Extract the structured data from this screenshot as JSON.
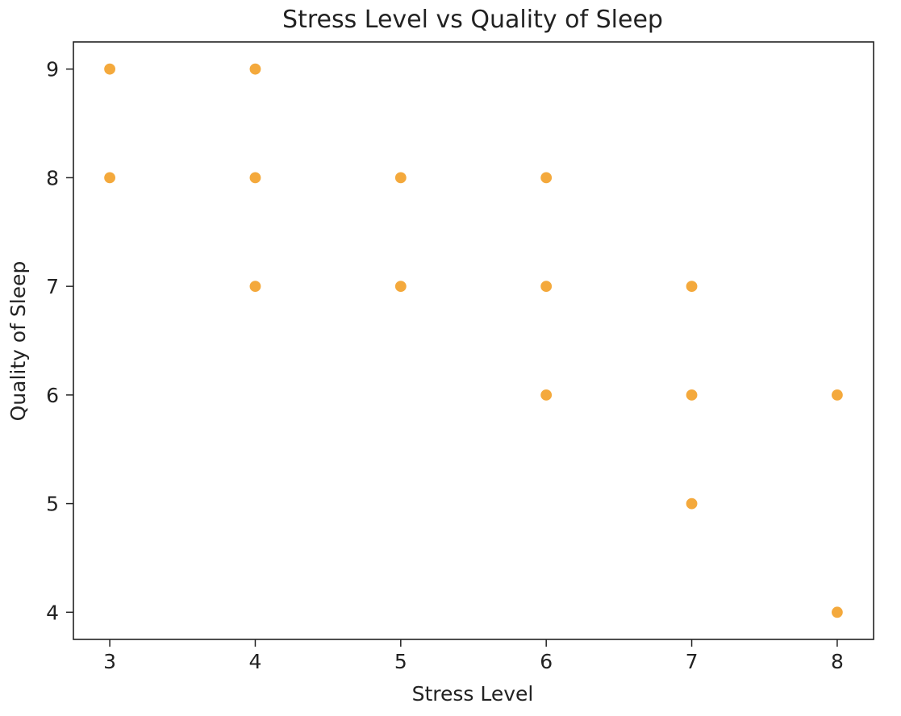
{
  "chart_data": {
    "type": "scatter",
    "title": "Stress Level vs Quality of Sleep",
    "xlabel": "Stress Level",
    "ylabel": "Quality of Sleep",
    "xlim": [
      2.75,
      8.25
    ],
    "ylim": [
      3.75,
      9.25
    ],
    "xticks": [
      3,
      4,
      5,
      6,
      7,
      8
    ],
    "yticks": [
      4,
      5,
      6,
      7,
      8,
      9
    ],
    "grid": false,
    "marker_color": "#F4A93C",
    "points": [
      {
        "x": 3,
        "y": 9
      },
      {
        "x": 3,
        "y": 8
      },
      {
        "x": 4,
        "y": 9
      },
      {
        "x": 4,
        "y": 8
      },
      {
        "x": 4,
        "y": 7
      },
      {
        "x": 5,
        "y": 8
      },
      {
        "x": 5,
        "y": 7
      },
      {
        "x": 6,
        "y": 8
      },
      {
        "x": 6,
        "y": 7
      },
      {
        "x": 6,
        "y": 6
      },
      {
        "x": 7,
        "y": 7
      },
      {
        "x": 7,
        "y": 6
      },
      {
        "x": 7,
        "y": 5
      },
      {
        "x": 8,
        "y": 6
      },
      {
        "x": 8,
        "y": 4
      }
    ]
  }
}
